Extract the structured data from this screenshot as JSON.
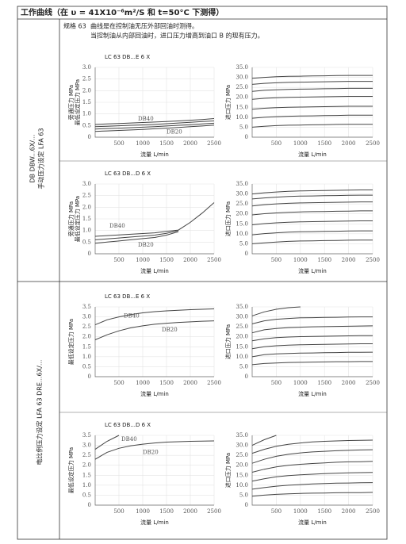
{
  "header": "工作曲线（在 υ = 41X10⁻⁶m²/S 和 t=50°C 下测得）",
  "spec": "规格 63",
  "notes": [
    "曲线是在控制油无压外部回油时测得。",
    "当控制油从内部回油时，进口压力增高到油口 B 的现有压力。"
  ],
  "sections": [
    [
      "手动压力设定 LFA 63",
      "DB DBW...6X/..."
    ],
    [
      "电比例压力设定 LFA 63 DRE...6X/..."
    ]
  ],
  "chart_data": [
    {
      "type": "line",
      "title": "LC 63 DB...E 6 X",
      "ylabel": [
        "旁通压力 MPa",
        "最低设定压力 MPa"
      ],
      "xlabel": "流量 L/min",
      "color": "#444444",
      "grid": true,
      "xlim": [
        0,
        2500
      ],
      "ylim": [
        0,
        3
      ],
      "xticks": [
        500,
        1000,
        1500,
        2000,
        2500
      ],
      "yticks": [
        0,
        0.5,
        {
          "value": 1,
          "label": "1.0"
        },
        1.5,
        {
          "value": 2,
          "label": "2.0"
        },
        2.5,
        {
          "value": 3,
          "label": "3.0"
        }
      ],
      "annotations": [
        "DB40",
        "DB20"
      ],
      "x": [
        0,
        250,
        500,
        750,
        1000,
        1250,
        1500,
        1750,
        2000,
        2250,
        2500
      ],
      "series": [
        {
          "values": [
            0.55,
            0.57,
            0.59,
            0.61,
            0.63,
            0.65,
            0.67,
            0.7,
            0.73,
            0.76,
            0.8
          ]
        },
        {
          "values": [
            0.45,
            0.47,
            0.49,
            0.51,
            0.53,
            0.55,
            0.58,
            0.61,
            0.64,
            0.67,
            0.7
          ]
        },
        {
          "values": [
            0.35,
            0.37,
            0.39,
            0.41,
            0.43,
            0.45,
            0.48,
            0.51,
            0.54,
            0.57,
            0.6
          ]
        },
        {
          "values": [
            0.25,
            0.27,
            0.29,
            0.31,
            0.33,
            0.36,
            0.39,
            0.42,
            0.45,
            0.48,
            0.52
          ]
        }
      ]
    },
    {
      "type": "line",
      "ylabel": [
        "进口压力 MPa"
      ],
      "xlabel": "流量 L/min",
      "color": "#444444",
      "grid": true,
      "xlim": [
        0,
        2500
      ],
      "ylim": [
        0,
        35
      ],
      "xticks": [
        500,
        1000,
        1500,
        2000,
        2500
      ],
      "yticks": [
        0,
        {
          "value": 5,
          "label": "5.0"
        },
        {
          "value": 10,
          "label": "10.0"
        },
        {
          "value": 15,
          "label": "15.0"
        },
        {
          "value": 20,
          "label": "20.0"
        },
        {
          "value": 25,
          "label": "25.0"
        },
        {
          "value": 30,
          "label": "30.0"
        },
        {
          "value": 35,
          "label": "35.0"
        }
      ],
      "x": [
        0,
        250,
        500,
        750,
        1000,
        1250,
        1500,
        1750,
        2000,
        2250,
        2500
      ],
      "series": [
        {
          "values": [
            29.5,
            30,
            30.3,
            30.5,
            30.6,
            30.7,
            30.8,
            30.9,
            31,
            31,
            31
          ]
        },
        {
          "values": [
            26.5,
            27,
            27.3,
            27.5,
            27.6,
            27.7,
            27.8,
            27.9,
            28,
            28,
            28
          ]
        },
        {
          "values": [
            23,
            23.5,
            23.8,
            24,
            24.1,
            24.2,
            24.3,
            24.4,
            24.5,
            24.5,
            24.5
          ]
        },
        {
          "values": [
            19,
            19.5,
            19.8,
            20,
            20.1,
            20.2,
            20.3,
            20.4,
            20.5,
            20.5,
            20.5
          ]
        },
        {
          "values": [
            14,
            14.5,
            14.8,
            15,
            15.1,
            15.2,
            15.3,
            15.4,
            15.5,
            15.5,
            15.5
          ]
        },
        {
          "values": [
            9.5,
            10,
            10.3,
            10.5,
            10.6,
            10.7,
            10.8,
            10.9,
            11,
            11,
            11
          ]
        },
        {
          "values": [
            5,
            5.5,
            5.8,
            6,
            6.1,
            6.2,
            6.3,
            6.4,
            6.5,
            6.5,
            6.5
          ]
        }
      ]
    },
    {
      "type": "line",
      "title": "LC 63 DB...D 6 X",
      "ylabel": [
        "旁通压力 MPa",
        "最低设定压力 MPa"
      ],
      "xlabel": "流量 L/min",
      "color": "#444444",
      "grid": true,
      "xlim": [
        0,
        2500
      ],
      "ylim": [
        0,
        3
      ],
      "xticks": [
        500,
        1000,
        1500,
        2000,
        2500
      ],
      "yticks": [
        0,
        0.5,
        {
          "value": 1,
          "label": "1.0"
        },
        1.5,
        {
          "value": 2,
          "label": "2.0"
        },
        2.5,
        {
          "value": 3,
          "label": "3.0"
        }
      ],
      "annotations": [
        "DB40",
        "DB20"
      ],
      "x": [
        0,
        250,
        500,
        750,
        1000,
        1250,
        1500,
        1750,
        2000,
        2250,
        2500
      ],
      "series": [
        {
          "values": [
            0.75,
            0.78,
            0.81,
            0.84,
            0.87,
            0.9,
            0.96,
            1.02,
            1.35,
            1.75,
            2.2
          ]
        },
        {
          "values": [
            0.6,
            0.64,
            0.68,
            0.72,
            0.76,
            0.8,
            0.88,
            1.0,
            null,
            null,
            null
          ]
        },
        {
          "values": [
            0.45,
            0.5,
            0.55,
            0.6,
            0.65,
            0.7,
            0.8,
            0.95,
            null,
            null,
            null
          ]
        }
      ]
    },
    {
      "type": "line",
      "ylabel": [
        "进口压力 MPa"
      ],
      "xlabel": "流量 L/min",
      "color": "#444444",
      "grid": true,
      "xlim": [
        0,
        2500
      ],
      "ylim": [
        0,
        35
      ],
      "xticks": [
        500,
        1000,
        1500,
        2000,
        2500
      ],
      "yticks": [
        0,
        {
          "value": 5,
          "label": "5.0"
        },
        {
          "value": 10,
          "label": "10.0"
        },
        {
          "value": 15,
          "label": "15.0"
        },
        {
          "value": 20,
          "label": "20.0"
        },
        {
          "value": 25,
          "label": "25.0"
        },
        {
          "value": 30,
          "label": "30.0"
        },
        {
          "value": 35,
          "label": "35.0"
        }
      ],
      "x": [
        0,
        250,
        500,
        750,
        1000,
        1250,
        1500,
        1750,
        2000,
        2250,
        2500
      ],
      "series": [
        {
          "values": [
            30,
            30.6,
            31,
            31.3,
            31.5,
            31.6,
            31.7,
            31.8,
            31.9,
            32,
            32
          ]
        },
        {
          "values": [
            27.5,
            28,
            28.4,
            28.7,
            28.9,
            29,
            29.1,
            29.2,
            29.3,
            29.4,
            29.4
          ]
        },
        {
          "values": [
            24,
            24.6,
            25,
            25.3,
            25.5,
            25.6,
            25.7,
            25.8,
            25.9,
            26,
            26
          ]
        },
        {
          "values": [
            19.5,
            20.1,
            20.5,
            20.8,
            21,
            21.1,
            21.2,
            21.3,
            21.4,
            21.5,
            21.5
          ]
        },
        {
          "values": [
            14.5,
            15.1,
            15.5,
            15.8,
            16,
            16.1,
            16.2,
            16.3,
            16.4,
            16.5,
            16.5
          ]
        },
        {
          "values": [
            9.5,
            10.1,
            10.5,
            10.8,
            11,
            11.1,
            11.2,
            11.3,
            11.4,
            11.5,
            11.5
          ]
        },
        {
          "values": [
            5,
            5.5,
            5.9,
            6.2,
            6.4,
            6.5,
            6.6,
            6.7,
            6.8,
            6.9,
            6.9
          ]
        }
      ]
    },
    {
      "type": "line",
      "title": "LC 63 DB...E 6 X",
      "ylabel": [
        "最低设定压力 MPa"
      ],
      "xlabel": "流量 L/min",
      "color": "#444444",
      "grid": true,
      "xlim": [
        0,
        2500
      ],
      "ylim": [
        0,
        3.5
      ],
      "xticks": [
        500,
        1000,
        1500,
        2000,
        2500
      ],
      "yticks": [
        0,
        0.5,
        {
          "value": 1,
          "label": "1.0"
        },
        1.5,
        {
          "value": 2,
          "label": "2.0"
        },
        2.5,
        {
          "value": 3,
          "label": "3.0"
        },
        3.5
      ],
      "annotations": [
        "DB40",
        "DB20"
      ],
      "x": [
        0,
        250,
        500,
        750,
        1000,
        1250,
        1500,
        1750,
        2000,
        2250,
        2500
      ],
      "series": [
        {
          "values": [
            2.6,
            2.85,
            3.0,
            3.12,
            3.2,
            3.26,
            3.3,
            3.33,
            3.36,
            3.38,
            3.4
          ]
        },
        {
          "values": [
            1.85,
            2.1,
            2.3,
            2.45,
            2.55,
            2.63,
            2.68,
            2.72,
            2.75,
            2.78,
            2.8
          ]
        }
      ]
    },
    {
      "type": "line",
      "ylabel": [
        "进口压力 MPa"
      ],
      "xlabel": "流量 L/min",
      "color": "#444444",
      "grid": true,
      "xlim": [
        0,
        2500
      ],
      "ylim": [
        0,
        35
      ],
      "xticks": [
        500,
        1000,
        1500,
        2000,
        2500
      ],
      "yticks": [
        0,
        {
          "value": 5,
          "label": "5.0"
        },
        {
          "value": 10,
          "label": "10.0"
        },
        {
          "value": 15,
          "label": "15.0"
        },
        {
          "value": 20,
          "label": "20.0"
        },
        {
          "value": 25,
          "label": "25.0"
        },
        {
          "value": 30,
          "label": "30.0"
        },
        {
          "value": 35,
          "label": "35.0"
        }
      ],
      "x": [
        0,
        250,
        500,
        750,
        1000,
        1250,
        1500,
        1750,
        2000,
        2250,
        2500
      ],
      "series": [
        {
          "values": [
            30.5,
            32.5,
            33.8,
            34.6,
            35,
            null,
            null,
            null,
            null,
            null,
            null
          ]
        },
        {
          "values": [
            26.5,
            28,
            28.8,
            29.2,
            29.5,
            29.6,
            29.7,
            29.8,
            29.9,
            30,
            30
          ]
        },
        {
          "values": [
            22,
            23.5,
            24.2,
            24.6,
            24.8,
            25,
            25.1,
            25.2,
            25.3,
            25.4,
            25.5
          ]
        },
        {
          "values": [
            18,
            19,
            19.6,
            19.9,
            20.1,
            20.2,
            20.3,
            20.4,
            20.5,
            20.6,
            20.6
          ]
        },
        {
          "values": [
            14,
            15,
            15.5,
            15.8,
            16,
            16.1,
            16.2,
            16.3,
            16.4,
            16.5,
            16.5
          ]
        },
        {
          "values": [
            10,
            11,
            11.4,
            11.6,
            11.8,
            11.9,
            12,
            12.1,
            12.2,
            12.2,
            12.3
          ]
        },
        {
          "values": [
            6,
            6.6,
            6.9,
            7.1,
            7.2,
            7.3,
            7.4,
            7.5,
            7.5,
            7.6,
            7.6
          ]
        }
      ]
    },
    {
      "type": "line",
      "title": "LC 63 DB...D 6 X",
      "ylabel": [
        "最低设定压力 MPa"
      ],
      "xlabel": "流量 L/min",
      "color": "#444444",
      "grid": true,
      "xlim": [
        0,
        2500
      ],
      "ylim": [
        0,
        3.5
      ],
      "xticks": [
        500,
        1000,
        1500,
        2000,
        2500
      ],
      "yticks": [
        0,
        0.5,
        {
          "value": 1,
          "label": "1.0"
        },
        1.5,
        {
          "value": 2,
          "label": "2.0"
        },
        2.5,
        {
          "value": 3,
          "label": "3.0"
        },
        3.5
      ],
      "annotations": [
        "DB40",
        "DB20"
      ],
      "x": [
        0,
        250,
        500,
        750,
        1000,
        1250,
        1500,
        1750,
        2000,
        2250,
        2500
      ],
      "series": [
        {
          "values": [
            2.8,
            3.2,
            3.5,
            null,
            null,
            null,
            null,
            null,
            null,
            null,
            null
          ]
        },
        {
          "values": [
            2.3,
            2.65,
            2.85,
            2.98,
            3.06,
            3.12,
            3.16,
            3.18,
            3.2,
            3.21,
            3.22
          ]
        }
      ]
    },
    {
      "type": "line",
      "ylabel": [
        "进口压力 MPa"
      ],
      "xlabel": "流量 L/min",
      "color": "#444444",
      "grid": true,
      "xlim": [
        0,
        2500
      ],
      "ylim": [
        0,
        35
      ],
      "xticks": [
        500,
        1000,
        1500,
        2000,
        2500
      ],
      "yticks": [
        0,
        {
          "value": 5,
          "label": "5.0"
        },
        {
          "value": 10,
          "label": "10.0"
        },
        {
          "value": 15,
          "label": "15.0"
        },
        {
          "value": 20,
          "label": "20.0"
        },
        {
          "value": 25,
          "label": "25.0"
        },
        {
          "value": 30,
          "label": "30.0"
        },
        {
          "value": 35,
          "label": "35.0"
        }
      ],
      "x": [
        0,
        250,
        500,
        750,
        1000,
        1250,
        1500,
        1750,
        2000,
        2250,
        2500
      ],
      "series": [
        {
          "values": [
            30,
            32.8,
            35,
            null,
            null,
            null,
            null,
            null,
            null,
            null,
            null
          ]
        },
        {
          "values": [
            26,
            28,
            29.5,
            30.5,
            31.2,
            31.7,
            32,
            32.2,
            32.4,
            32.5,
            32.6
          ]
        },
        {
          "values": [
            21,
            23,
            24.5,
            25.5,
            26.2,
            26.7,
            27,
            27.3,
            27.5,
            27.7,
            27.8
          ]
        },
        {
          "values": [
            16.5,
            18,
            19.2,
            20,
            20.5,
            20.9,
            21.2,
            21.5,
            21.7,
            21.8,
            22
          ]
        },
        {
          "values": [
            12,
            13.2,
            14.2,
            14.8,
            15.2,
            15.5,
            15.8,
            16,
            16.2,
            16.3,
            16.4
          ]
        },
        {
          "values": [
            8,
            8.8,
            9.5,
            10,
            10.3,
            10.6,
            10.8,
            11,
            11.1,
            11.2,
            11.3
          ]
        },
        {
          "values": [
            4.5,
            5,
            5.4,
            5.7,
            5.9,
            6,
            6.1,
            6.2,
            6.3,
            6.3,
            6.4
          ]
        }
      ]
    }
  ]
}
